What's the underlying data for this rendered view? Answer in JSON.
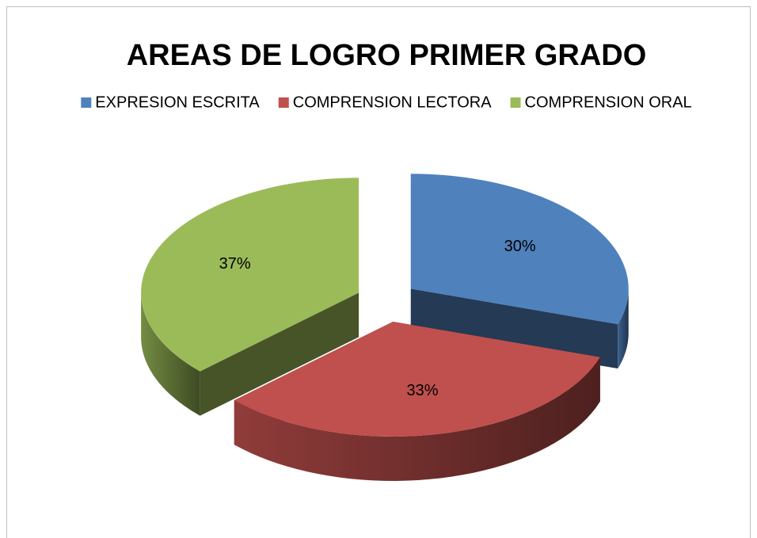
{
  "chart_data": {
    "type": "pie",
    "title": "AREAS DE LOGRO PRIMER GRADO",
    "categories": [
      "EXPRESION ESCRITA",
      "COMPRENSION LECTORA",
      "COMPRENSION ORAL"
    ],
    "values": [
      30,
      33,
      37
    ],
    "value_labels": [
      "30%",
      "33%",
      "37%"
    ],
    "colors": [
      "#4f81bd",
      "#c0504d",
      "#9bbb59"
    ],
    "legend": "top"
  }
}
